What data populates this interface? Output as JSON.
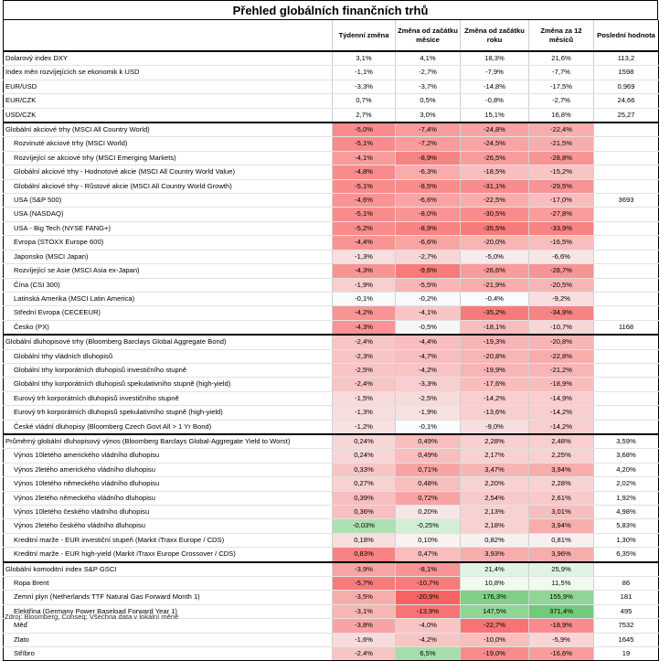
{
  "title": "Přehled globálních finančních trhů",
  "headers": [
    "",
    "Týdenní změna",
    "Změna od začátku měsíce",
    "Změna od začátku roku",
    "Změna za 12 měsíců",
    "Poslední hodnota"
  ],
  "footer": "Zdroj: Bloomberg, Conseq; Všechna data v lokální měně",
  "groups": [
    {
      "rows": [
        {
          "label": "Dolarový index DXY",
          "sub": false,
          "cells": [
            "3,1%",
            "4,1%",
            "18,3%",
            "21,6%",
            "113,2"
          ],
          "shade": [
            0,
            0,
            0,
            0
          ]
        },
        {
          "label": "Index měn rozvíjejících se ekonomik k USD",
          "sub": false,
          "cells": [
            "-1,1%",
            "-2,7%",
            "-7,9%",
            "-7,7%",
            "1598"
          ],
          "shade": [
            0,
            0,
            0,
            0
          ]
        },
        {
          "label": "EUR/USD",
          "sub": false,
          "cells": [
            "-3,3%",
            "-3,7%",
            "-14,8%",
            "-17,5%",
            "0,969"
          ],
          "shade": [
            0,
            0,
            0,
            0
          ]
        },
        {
          "label": "EUR/CZK",
          "sub": false,
          "cells": [
            "0,7%",
            "0,5%",
            "-0,8%",
            "-2,7%",
            "24,66"
          ],
          "shade": [
            0,
            0,
            0,
            0
          ]
        },
        {
          "label": "USD/CZK",
          "sub": false,
          "cells": [
            "2,7%",
            "3,0%",
            "15,1%",
            "16,8%",
            "25,27"
          ],
          "shade": [
            0,
            0,
            0,
            0
          ]
        }
      ]
    },
    {
      "rows": [
        {
          "label": "Globální akciové trhy (MSCI All Country World)",
          "sub": false,
          "cells": [
            "-5,0%",
            "-7,4%",
            "-24,8%",
            "-22,4%",
            ""
          ],
          "shade": [
            -0.7,
            -0.6,
            -0.55,
            -0.5
          ]
        },
        {
          "label": "Rozvinuté akciové trhy (MSCI World)",
          "sub": true,
          "cells": [
            "-5,1%",
            "-7,2%",
            "-24,5%",
            "-21,5%",
            ""
          ],
          "shade": [
            -0.7,
            -0.6,
            -0.55,
            -0.5
          ]
        },
        {
          "label": "Rozvíjející se akciové trhy (MSCI Emerging Markets)",
          "sub": true,
          "cells": [
            "-4,1%",
            "-8,9%",
            "-26,5%",
            "-28,8%",
            ""
          ],
          "shade": [
            -0.6,
            -0.75,
            -0.6,
            -0.65
          ]
        },
        {
          "label": "Globální akciové trhy - Hodnotové akcie (MSCI All Country World Value)",
          "sub": true,
          "cells": [
            "-4,8%",
            "-6,3%",
            "-18,5%",
            "-15,2%",
            ""
          ],
          "shade": [
            -0.7,
            -0.5,
            -0.4,
            -0.35
          ]
        },
        {
          "label": "Globální akciové trhy - Růstové akcie (MSCI All Country World Growth)",
          "sub": true,
          "cells": [
            "-5,1%",
            "-8,5%",
            "-31,1%",
            "-29,5%",
            ""
          ],
          "shade": [
            -0.7,
            -0.7,
            -0.7,
            -0.65
          ]
        },
        {
          "label": "USA (S&P 500)",
          "sub": true,
          "cells": [
            "-4,6%",
            "-6,6%",
            "-22,5%",
            "-17,0%",
            "3693"
          ],
          "shade": [
            -0.65,
            -0.55,
            -0.5,
            -0.4
          ]
        },
        {
          "label": "USA (NASDAQ)",
          "sub": true,
          "cells": [
            "-5,1%",
            "-8,0%",
            "-30,5%",
            "-27,8%",
            ""
          ],
          "shade": [
            -0.7,
            -0.65,
            -0.7,
            -0.6
          ]
        },
        {
          "label": "USA - Big Tech (NYSE FANG+)",
          "sub": true,
          "cells": [
            "-5,2%",
            "-8,9%",
            "-35,5%",
            "-33,9%",
            ""
          ],
          "shade": [
            -0.7,
            -0.75,
            -0.8,
            -0.75
          ]
        },
        {
          "label": "Evropa (STOXX Europe 600)",
          "sub": true,
          "cells": [
            "-4,4%",
            "-6,6%",
            "-20,0%",
            "-16,5%",
            ""
          ],
          "shade": [
            -0.65,
            -0.55,
            -0.45,
            -0.4
          ]
        },
        {
          "label": "Japonsko (MSCI Japan)",
          "sub": true,
          "cells": [
            "-1,3%",
            "-2,7%",
            "-5,0%",
            "-6,6%",
            ""
          ],
          "shade": [
            -0.2,
            -0.25,
            -0.12,
            -0.15
          ]
        },
        {
          "label": "Rozvíjející se Asie (MSCI Asia ex-Japan)",
          "sub": true,
          "cells": [
            "-4,3%",
            "-9,6%",
            "-26,6%",
            "-28,7%",
            ""
          ],
          "shade": [
            -0.65,
            -0.8,
            -0.6,
            -0.65
          ]
        },
        {
          "label": "Čína (CSI 300)",
          "sub": true,
          "cells": [
            "-1,9%",
            "-5,5%",
            "-21,9%",
            "-20,5%",
            ""
          ],
          "shade": [
            -0.3,
            -0.45,
            -0.5,
            -0.45
          ]
        },
        {
          "label": "Latinská Amerika (MSCI Latin America)",
          "sub": true,
          "cells": [
            "-0,1%",
            "-0,2%",
            "-0,4%",
            "-9,2%",
            ""
          ],
          "shade": [
            -0.03,
            -0.03,
            -0.02,
            -0.2
          ]
        },
        {
          "label": "Střední Evropa (CECEEUR)",
          "sub": true,
          "cells": [
            "-4,2%",
            "-4,1%",
            "-35,2%",
            "-34,9%",
            ""
          ],
          "shade": [
            -0.65,
            -0.35,
            -0.8,
            -0.75
          ]
        },
        {
          "label": "Česko (PX)",
          "sub": true,
          "cells": [
            "-4,3%",
            "-0,5%",
            "-18,1%",
            "-10,7%",
            "1168"
          ],
          "shade": [
            -0.65,
            -0.05,
            -0.4,
            -0.25
          ]
        }
      ]
    },
    {
      "rows": [
        {
          "label": "Globální dluhopisové trhy (Bloomberg Barclays Global Aggregate Bond)",
          "sub": false,
          "cells": [
            "-2,4%",
            "-4,4%",
            "-19,3%",
            "-20,8%",
            ""
          ],
          "shade": [
            -0.35,
            -0.4,
            -0.45,
            -0.45
          ]
        },
        {
          "label": "Globální trhy vládních dluhopisů",
          "sub": true,
          "cells": [
            "-2,3%",
            "-4,7%",
            "-20,8%",
            "-22,8%",
            ""
          ],
          "shade": [
            -0.35,
            -0.4,
            -0.45,
            -0.5
          ]
        },
        {
          "label": "Globální trhy korporátních dluhopisů investičního stupně",
          "sub": true,
          "cells": [
            "-2,5%",
            "-4,2%",
            "-19,9%",
            "-21,2%",
            ""
          ],
          "shade": [
            -0.35,
            -0.35,
            -0.45,
            -0.45
          ]
        },
        {
          "label": "Globální trhy korporátních dluhopisů spekulativního stupně (high-yield)",
          "sub": true,
          "cells": [
            "-2,4%",
            "-3,3%",
            "-17,6%",
            "-18,9%",
            ""
          ],
          "shade": [
            -0.35,
            -0.3,
            -0.4,
            -0.4
          ]
        },
        {
          "label": "Eurový trh korporátních dluhopisů investičního stupně",
          "sub": true,
          "cells": [
            "-1,5%",
            "-2,5%",
            "-14,2%",
            "-14,9%",
            ""
          ],
          "shade": [
            -0.22,
            -0.22,
            -0.3,
            -0.3
          ]
        },
        {
          "label": "Eurový trh korporátních dluhopisů spekulativního stupně (high-yield)",
          "sub": true,
          "cells": [
            "-1,3%",
            "-1,9%",
            "-13,6%",
            "-14,2%",
            ""
          ],
          "shade": [
            -0.2,
            -0.18,
            -0.3,
            -0.3
          ]
        },
        {
          "label": "České vládní dluhopisy (Bloomberg Czech Govt All > 1 Yr Bond)",
          "sub": true,
          "cells": [
            "-1,2%",
            "-0,1%",
            "-9,0%",
            "-14,2%",
            ""
          ],
          "shade": [
            -0.18,
            -0.02,
            -0.2,
            -0.3
          ]
        }
      ]
    },
    {
      "rows": [
        {
          "label": "Průměrný globální dluhopisový výnos (Bloomberg Barclays Global-Aggregate Yield to Worst)",
          "sub": false,
          "cells": [
            "0,24%",
            "0,49%",
            "2,28%",
            "2,48%",
            "3,59%"
          ],
          "shade": [
            -0.25,
            -0.4,
            -0.3,
            -0.3
          ]
        },
        {
          "label": "Výnos 10letého amerického vládního dluhopisu",
          "sub": true,
          "cells": [
            "0,24%",
            "0,49%",
            "2,17%",
            "2,25%",
            "3,68%"
          ],
          "shade": [
            -0.25,
            -0.4,
            -0.28,
            -0.28
          ]
        },
        {
          "label": "Výnos 2letého amerického vládního dluhopisu",
          "sub": true,
          "cells": [
            "0,33%",
            "0,71%",
            "3,47%",
            "3,94%",
            "4,20%"
          ],
          "shade": [
            -0.35,
            -0.55,
            -0.45,
            -0.5
          ]
        },
        {
          "label": "Výnos 10letého německého vládního dluhopisu",
          "sub": true,
          "cells": [
            "0,27%",
            "0,48%",
            "2,20%",
            "2,28%",
            "2,02%"
          ],
          "shade": [
            -0.28,
            -0.4,
            -0.28,
            -0.28
          ]
        },
        {
          "label": "Výnos 2letého německého vládního dluhopisu",
          "sub": true,
          "cells": [
            "0,39%",
            "0,72%",
            "2,54%",
            "2,61%",
            "1,92%"
          ],
          "shade": [
            -0.4,
            -0.55,
            -0.32,
            -0.32
          ]
        },
        {
          "label": "Výnos 10letého českého vládního dluhopisu",
          "sub": true,
          "cells": [
            "0,36%",
            "0,20%",
            "2,13%",
            "3,01%",
            "4,98%"
          ],
          "shade": [
            -0.38,
            -0.15,
            -0.28,
            -0.4
          ]
        },
        {
          "label": "Výnos 2letého českého vládního dluhopisu",
          "sub": true,
          "cells": [
            "-0,03%",
            "-0,25%",
            "2,18%",
            "3,94%",
            "5,83%"
          ],
          "shade": [
            0.55,
            0.3,
            -0.28,
            -0.5
          ]
        },
        {
          "label": "Kreditní marže - EUR investiční stupeň (Markit iTraxx Europe / CDS)",
          "sub": true,
          "cells": [
            "0,18%",
            "0,10%",
            "0,82%",
            "0,81%",
            "1,30%"
          ],
          "shade": [
            -0.2,
            -0.08,
            -0.1,
            -0.1
          ]
        },
        {
          "label": "Kreditní marže - EUR high-yield (Markit iTraxx Europe Crossover / CDS)",
          "sub": true,
          "cells": [
            "0,83%",
            "0,47%",
            "3,93%",
            "3,96%",
            "6,35%"
          ],
          "shade": [
            -0.75,
            -0.4,
            -0.5,
            -0.5
          ]
        }
      ]
    },
    {
      "rows": [
        {
          "label": "Globální komoditní index S&P GSCI",
          "sub": false,
          "cells": [
            "-3,9%",
            "-8,1%",
            "21,4%",
            "25,9%",
            ""
          ],
          "shade": [
            -0.55,
            -0.65,
            0.2,
            0.2
          ]
        },
        {
          "label": "Ropa Brent",
          "sub": true,
          "cells": [
            "-5,7%",
            "-10,7%",
            "10,8%",
            "11,5%",
            "86"
          ],
          "shade": [
            -0.8,
            -0.8,
            0.1,
            0.1
          ]
        },
        {
          "label": "Zemní plyn (Netherlands TTF Natural Gas Forward Month 1)",
          "sub": true,
          "cells": [
            "-3,5%",
            "-20,9%",
            "176,3%",
            "155,9%",
            "181"
          ],
          "shade": [
            -0.5,
            -0.95,
            0.85,
            0.75
          ]
        },
        {
          "label": "Elektřina (Germany Power Baseload Forward Year 1)",
          "sub": true,
          "cells": [
            "-3,1%",
            "-13,9%",
            "147,5%",
            "371,4%",
            "495"
          ],
          "shade": [
            -0.45,
            -0.85,
            0.75,
            0.95
          ]
        },
        {
          "label": "Měď",
          "sub": true,
          "cells": [
            "-3,8%",
            "-4,0%",
            "-22,7%",
            "-18,9%",
            "7532"
          ],
          "shade": [
            -0.55,
            -0.35,
            -0.85,
            -0.7
          ]
        },
        {
          "label": "Zlato",
          "sub": true,
          "cells": [
            "-1,6%",
            "-4,2%",
            "-10,0%",
            "-5,9%",
            "1645"
          ],
          "shade": [
            -0.22,
            -0.35,
            -0.4,
            -0.25
          ]
        },
        {
          "label": "Stříbro",
          "sub": true,
          "cells": [
            "-2,4%",
            "6,5%",
            "-19,0%",
            "-16,6%",
            "19"
          ],
          "shade": [
            -0.35,
            0.6,
            -0.7,
            -0.6
          ]
        }
      ]
    }
  ]
}
